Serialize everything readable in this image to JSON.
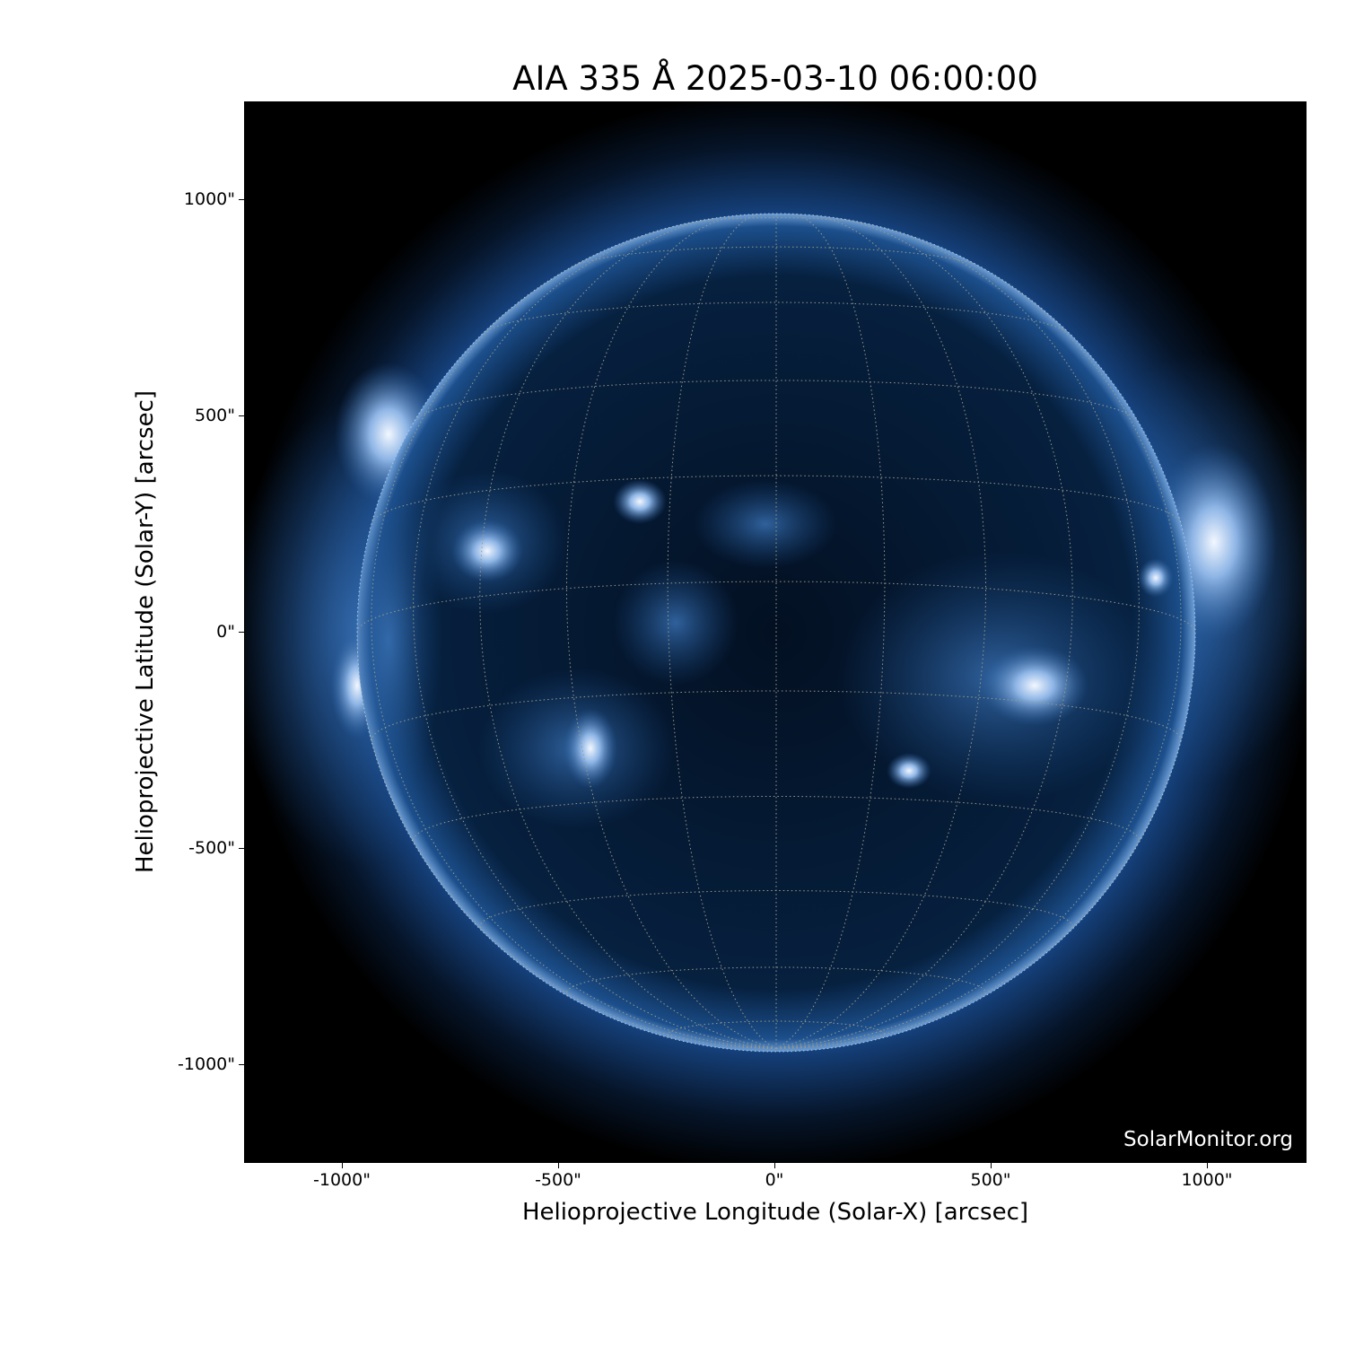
{
  "title": "AIA 335 Å 2025-03-10 06:00:00",
  "xaxis": {
    "label": "Helioprojective Longitude (Solar-X) [arcsec]",
    "ticks": [
      "-1000\"",
      "-500\"",
      "0\"",
      "500\"",
      "1000\""
    ]
  },
  "yaxis": {
    "label": "Helioprojective Latitude (Solar-Y) [arcsec]",
    "ticks": [
      "1000\"",
      "500\"",
      "0\"",
      "-500\"",
      "-1000\""
    ]
  },
  "credit": "SolarMonitor.org",
  "colormap": {
    "dark": "#000000",
    "mid": "#1f5a9e",
    "bright": "#e8f0ff"
  }
}
